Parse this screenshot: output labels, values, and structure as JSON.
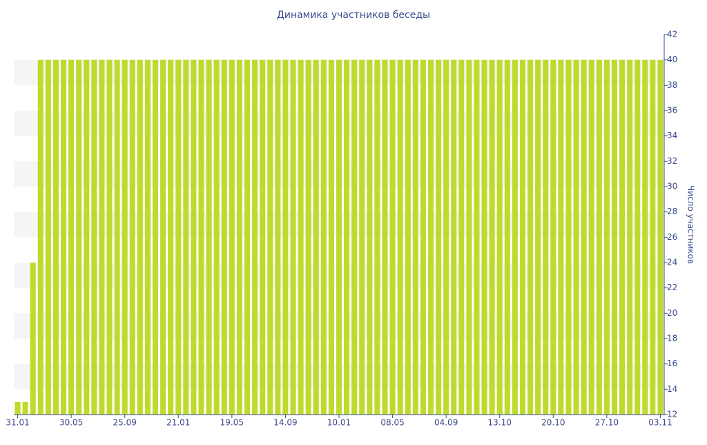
{
  "chart_data": {
    "type": "bar",
    "title": "Динамика участников беседы",
    "y_axis_label": "Число участников",
    "categories": [
      "31.01",
      null,
      null,
      null,
      null,
      null,
      null,
      "30.05",
      null,
      null,
      null,
      null,
      null,
      null,
      "25.09",
      null,
      null,
      null,
      null,
      null,
      null,
      "21.01",
      null,
      null,
      null,
      null,
      null,
      null,
      "19.05",
      null,
      null,
      null,
      null,
      null,
      null,
      "14.09",
      null,
      null,
      null,
      null,
      null,
      null,
      "10.01",
      null,
      null,
      null,
      null,
      null,
      null,
      "08.05",
      null,
      null,
      null,
      null,
      null,
      null,
      "04.09",
      null,
      null,
      null,
      null,
      null,
      null,
      "13.10",
      null,
      null,
      null,
      null,
      null,
      null,
      "20.10",
      null,
      null,
      null,
      null,
      null,
      null,
      "27.10",
      null,
      null,
      null,
      null,
      null,
      null,
      "03.11"
    ],
    "values": [
      13,
      13,
      24,
      40,
      40,
      40,
      40,
      40,
      40,
      40,
      40,
      40,
      40,
      40,
      40,
      40,
      40,
      40,
      40,
      40,
      40,
      40,
      40,
      40,
      40,
      40,
      40,
      40,
      40,
      40,
      40,
      40,
      40,
      40,
      40,
      40,
      40,
      40,
      40,
      40,
      40,
      40,
      40,
      40,
      40,
      40,
      40,
      40,
      40,
      40,
      40,
      40,
      40,
      40,
      40,
      40,
      40,
      40,
      40,
      40,
      40,
      40,
      40,
      40,
      40,
      40,
      40,
      40,
      40,
      40,
      40,
      40,
      40,
      40,
      40,
      40,
      40,
      40,
      40,
      40,
      40,
      40,
      40,
      40,
      40
    ],
    "color": "#bedb2d",
    "ylim": [
      12,
      42
    ],
    "yticks": [
      12,
      14,
      16,
      18,
      20,
      22,
      24,
      26,
      28,
      30,
      32,
      34,
      36,
      38,
      40,
      42
    ],
    "grid": true
  }
}
